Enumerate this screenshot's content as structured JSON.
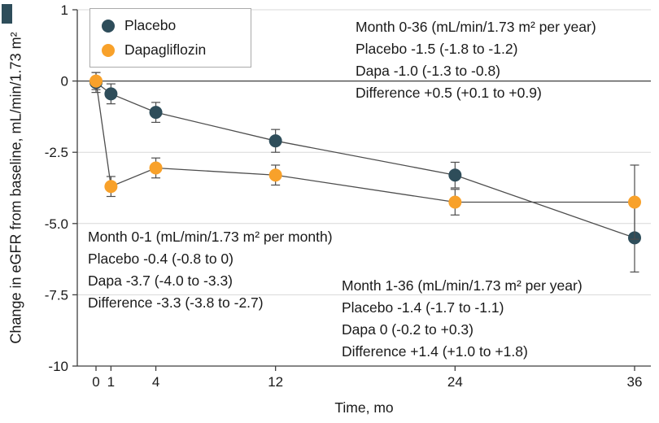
{
  "figure": {
    "background": "#ffffff",
    "panel_marker_color": "#2e4d5a"
  },
  "chart_data": {
    "type": "line",
    "title": "",
    "xlabel": "Time, mo",
    "ylabel": "Change in eGFR from baseline, mL/min/1.73 m²",
    "x_ticks": {
      "values": [
        0,
        1,
        4,
        12,
        24,
        36
      ],
      "labels": [
        "0",
        "1",
        "4",
        "12",
        "24",
        "36"
      ]
    },
    "y_ticks": {
      "values": [
        1,
        0,
        -2.5,
        -5,
        -7.5,
        -10
      ],
      "labels": [
        "1",
        "0",
        "-2.5",
        "-5.0",
        "-7.5",
        "-10"
      ]
    },
    "x_range": [
      0,
      36
    ],
    "y_range": [
      -10,
      1
    ],
    "grid": "horizontal",
    "legend_position": "top-left",
    "line_color": "#4d4d4d",
    "error_bar_color": "#4d4d4d",
    "series": [
      {
        "name": "Placebo",
        "color": "#2e4d5a",
        "x": [
          0,
          1,
          4,
          12,
          24,
          36
        ],
        "y": [
          -0.05,
          -0.45,
          -1.1,
          -2.1,
          -3.3,
          -5.5
        ],
        "err": [
          0.35,
          0.35,
          0.35,
          0.4,
          0.45,
          1.2
        ]
      },
      {
        "name": "Dapagliflozin",
        "color": "#f8a12a",
        "x": [
          0,
          1,
          4,
          12,
          24,
          36
        ],
        "y": [
          0,
          -3.7,
          -3.05,
          -3.3,
          -4.25,
          -4.25
        ],
        "err": [
          0.3,
          0.35,
          0.35,
          0.35,
          0.45,
          1.3
        ]
      }
    ]
  },
  "legend": {
    "items": [
      {
        "label": "Placebo",
        "color": "#2e4d5a"
      },
      {
        "label": "Dapagliflozin",
        "color": "#f8a12a"
      }
    ]
  },
  "annotations": {
    "top_right": {
      "lines": [
        "Month 0-36 (mL/min/1.73 m² per year)",
        "Placebo -1.5 (-1.8 to -1.2)",
        "Dapa -1.0 (-1.3 to -0.8)",
        "Difference +0.5 (+0.1 to +0.9)"
      ]
    },
    "bottom_left": {
      "lines": [
        "Month 0-1 (mL/min/1.73 m² per month)",
        "Placebo -0.4 (-0.8 to 0)",
        "Dapa -3.7 (-4.0 to -3.3)",
        "Difference -3.3 (-3.8 to -2.7)"
      ]
    },
    "bottom_mid": {
      "lines": [
        "Month 1-36 (mL/min/1.73 m² per year)",
        "Placebo -1.4 (-1.7 to -1.1)",
        "Dapa 0 (-0.2 to +0.3)",
        "Difference +1.4 (+1.0 to +1.8)"
      ]
    }
  }
}
